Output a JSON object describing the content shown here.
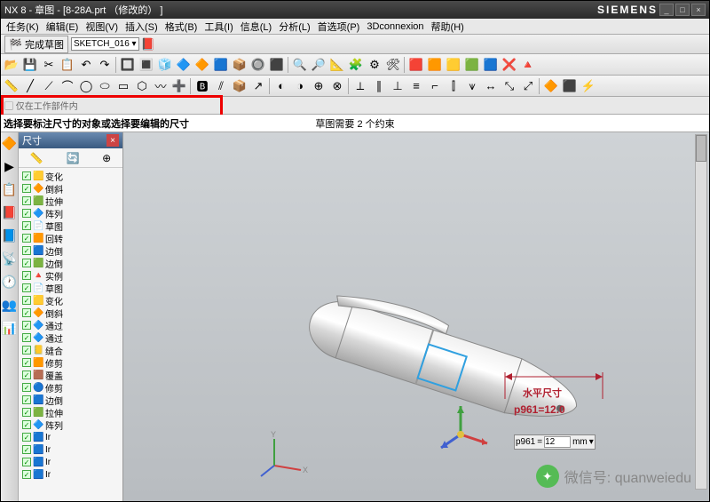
{
  "title": "NX 8 - 章图 - [8-28A.prt （修改的）  ]",
  "brand": "SIEMENS",
  "menu": [
    "任务(K)",
    "编辑(E)",
    "视图(V)",
    "插入(S)",
    "格式(B)",
    "工具(I)",
    "信息(L)",
    "分析(L)",
    "首选项(P)",
    "3Dconnexion",
    "帮助(H)"
  ],
  "finish": {
    "label": "完成草图",
    "sketch": "SKETCH_016"
  },
  "hint": "选择要标注尺寸的对象或选择要编辑的尺寸",
  "status_mid": "草图需要 2 个约束",
  "tree": {
    "title": "尺寸",
    "items": [
      {
        "icon": "🟨",
        "label": "变化"
      },
      {
        "icon": "🔶",
        "label": "倒斜"
      },
      {
        "icon": "🟩",
        "label": "拉伸"
      },
      {
        "icon": "🔷",
        "label": "阵列"
      },
      {
        "icon": "📄",
        "label": "草图"
      },
      {
        "icon": "🟧",
        "label": "回转"
      },
      {
        "icon": "🟦",
        "label": "边倒"
      },
      {
        "icon": "🟩",
        "label": "边倒"
      },
      {
        "icon": "🔺",
        "label": "实例"
      },
      {
        "icon": "📄",
        "label": "草图"
      },
      {
        "icon": "🟨",
        "label": "变化"
      },
      {
        "icon": "🔶",
        "label": "倒斜"
      },
      {
        "icon": "🔷",
        "label": "通过"
      },
      {
        "icon": "🔷",
        "label": "通过"
      },
      {
        "icon": "📒",
        "label": "缝合"
      },
      {
        "icon": "🟧",
        "label": "修剪"
      },
      {
        "icon": "🟫",
        "label": "覆盖"
      },
      {
        "icon": "🔵",
        "label": "修剪"
      },
      {
        "icon": "🟦",
        "label": "边倒"
      },
      {
        "icon": "🟩",
        "label": "拉伸"
      },
      {
        "icon": "🔷",
        "label": "阵列"
      },
      {
        "icon": "🟦",
        "label": "Ir"
      },
      {
        "icon": "🟦",
        "label": "Ir"
      },
      {
        "icon": "🟦",
        "label": "Ir"
      },
      {
        "icon": "🟦",
        "label": "Ir"
      }
    ]
  },
  "leftstrip": [
    "🔶",
    "▶",
    "📋",
    "📕",
    "📘",
    "📡",
    "🕐",
    "👥",
    "📊"
  ],
  "toolbar1": [
    "📂",
    "💾",
    "✂",
    "📋",
    "↶",
    "↷",
    "|",
    "🔲",
    "🔳",
    "🧊",
    "🔷",
    "🔶",
    "🟦",
    "📦",
    "🔘",
    "⬛",
    "|",
    "🔍",
    "🔎",
    "📐",
    "🧩",
    "⚙",
    "🛠",
    "|",
    "🟥",
    "🟧",
    "🟨",
    "🟩",
    "🟦",
    "❌",
    "🔺"
  ],
  "toolbar2": [
    "📏",
    "╱",
    "⟋",
    "⌒",
    "◯",
    "⬭",
    "▭",
    "⬡",
    "〰",
    "➕",
    "|",
    "🅱",
    "⫽",
    "📦",
    "↗",
    "|",
    "◐",
    "◑",
    "⊕",
    "⊗",
    "|",
    "⟂",
    "∥",
    "⊥",
    "≡",
    "⌐",
    "⫿",
    "⩛",
    "↔",
    "⤡",
    "⤢",
    "|",
    "🔶",
    "⬛",
    "⚡"
  ],
  "dim": {
    "label": "水平尺寸",
    "value": "p961=12.0",
    "param": "p961",
    "input": "12",
    "unit": "mm"
  },
  "colors": {
    "accent_red": "#e00000",
    "dim_red": "#b02030",
    "title_grad_a": "#4a4a4a",
    "title_grad_b": "#2a2a2a",
    "viewport_a": "#cfd3d6",
    "viewport_b": "#b8bcc0",
    "axis_x": "#d04040",
    "axis_y": "#40a040",
    "axis_z": "#4060d0"
  },
  "watermark": {
    "text": "微信号: quanweiedu"
  }
}
